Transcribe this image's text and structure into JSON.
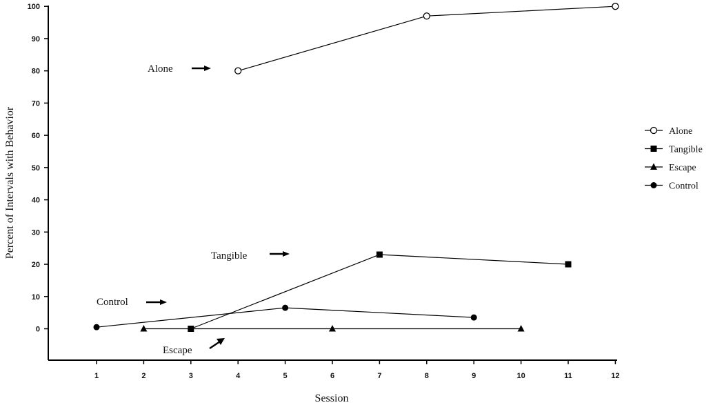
{
  "chart_data": {
    "type": "line",
    "title": "",
    "xlabel": "Session",
    "ylabel": "Percent of Intervals with Behavior",
    "x_ticks": [
      "1",
      "2",
      "3",
      "4",
      "5",
      "6",
      "7",
      "8",
      "9",
      "10",
      "11",
      "12"
    ],
    "y_ticks": [
      "0",
      "10",
      "20",
      "30",
      "40",
      "50",
      "60",
      "70",
      "80",
      "90",
      "100"
    ],
    "xlim": [
      0,
      12
    ],
    "ylim": [
      -10,
      100
    ],
    "grid": false,
    "legend_position": "right",
    "series": [
      {
        "name": "Alone",
        "marker": "open-circle",
        "x": [
          4,
          8,
          12
        ],
        "y": [
          80,
          97,
          100
        ]
      },
      {
        "name": "Tangible",
        "marker": "filled-square",
        "x": [
          3,
          7,
          11
        ],
        "y": [
          0,
          23,
          20
        ]
      },
      {
        "name": "Escape",
        "marker": "filled-triangle",
        "x": [
          2,
          6,
          10
        ],
        "y": [
          0,
          0,
          0
        ]
      },
      {
        "name": "Control",
        "marker": "filled-circle",
        "x": [
          1,
          5,
          9
        ],
        "y": [
          0.5,
          6.5,
          3.5
        ]
      }
    ],
    "annotations": [
      {
        "text": "Alone",
        "series": "Alone"
      },
      {
        "text": "Tangible",
        "series": "Tangible"
      },
      {
        "text": "Control",
        "series": "Control"
      },
      {
        "text": "Escape",
        "series": "Escape"
      }
    ]
  }
}
